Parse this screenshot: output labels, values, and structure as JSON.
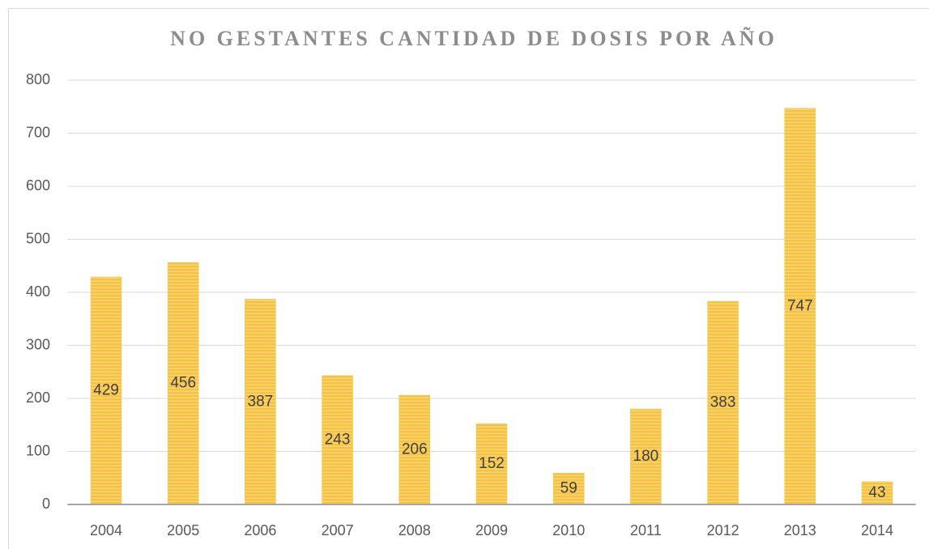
{
  "chart_data": {
    "type": "bar",
    "title": "NO GESTANTES CANTIDAD DE DOSIS POR AÑO",
    "categories": [
      "2004",
      "2005",
      "2006",
      "2007",
      "2008",
      "2009",
      "2010",
      "2011",
      "2012",
      "2013",
      "2014"
    ],
    "values": [
      429,
      456,
      387,
      243,
      206,
      152,
      59,
      180,
      383,
      747,
      43
    ],
    "color": "#f5c242",
    "ylim": [
      0,
      800
    ],
    "yticks": [
      0,
      100,
      200,
      300,
      400,
      500,
      600,
      700,
      800
    ],
    "grid": true
  }
}
